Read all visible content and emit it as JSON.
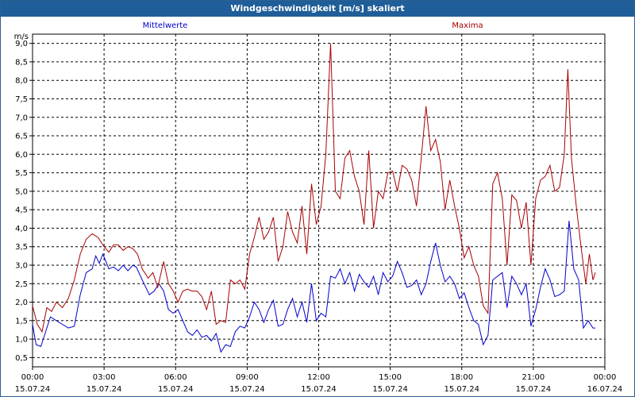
{
  "window": {
    "title": "Windgeschwindigkeit [m/s] skaliert"
  },
  "chart_data": {
    "type": "line",
    "title": "Windgeschwindigkeit [m/s] skaliert",
    "ylabel": "m/s",
    "ylim": [
      0.25,
      9.25
    ],
    "yticks": [
      "0,5",
      "1,0",
      "1,5",
      "2,0",
      "2,5",
      "3,0",
      "3,5",
      "4,0",
      "4,5",
      "5,0",
      "5,5",
      "6,0",
      "6,5",
      "7,0",
      "7,5",
      "8,0",
      "8,5",
      "9,0"
    ],
    "xlim_hours": [
      0,
      24
    ],
    "xticks": [
      {
        "h": 0,
        "time": "00:00",
        "date": "15.07.24"
      },
      {
        "h": 3,
        "time": "03:00",
        "date": "15.07.24"
      },
      {
        "h": 6,
        "time": "06:00",
        "date": "15.07.24"
      },
      {
        "h": 9,
        "time": "09:00",
        "date": "15.07.24"
      },
      {
        "h": 12,
        "time": "12:00",
        "date": "15.07.24"
      },
      {
        "h": 15,
        "time": "15:00",
        "date": "15.07.24"
      },
      {
        "h": 18,
        "time": "18:00",
        "date": "15.07.24"
      },
      {
        "h": 21,
        "time": "21:00",
        "date": "15.07.24"
      },
      {
        "h": 24,
        "time": "00:00",
        "date": "16.07.24"
      }
    ],
    "grid": true,
    "series": [
      {
        "name": "Mittelwerte",
        "color": "#0000cc",
        "points": [
          [
            0.0,
            1.4
          ],
          [
            0.15,
            0.85
          ],
          [
            0.35,
            0.8
          ],
          [
            0.6,
            1.3
          ],
          [
            0.75,
            1.6
          ],
          [
            1.0,
            1.5
          ],
          [
            1.25,
            1.4
          ],
          [
            1.5,
            1.3
          ],
          [
            1.75,
            1.35
          ],
          [
            2.0,
            2.2
          ],
          [
            2.25,
            2.8
          ],
          [
            2.5,
            2.9
          ],
          [
            2.65,
            3.25
          ],
          [
            2.8,
            3.05
          ],
          [
            2.95,
            3.3
          ],
          [
            3.2,
            2.9
          ],
          [
            3.4,
            2.95
          ],
          [
            3.6,
            2.85
          ],
          [
            3.8,
            3.0
          ],
          [
            4.0,
            2.85
          ],
          [
            4.2,
            3.0
          ],
          [
            4.35,
            2.95
          ],
          [
            4.6,
            2.6
          ],
          [
            4.9,
            2.2
          ],
          [
            5.1,
            2.3
          ],
          [
            5.3,
            2.5
          ],
          [
            5.5,
            2.3
          ],
          [
            5.7,
            1.8
          ],
          [
            5.9,
            1.7
          ],
          [
            6.1,
            1.8
          ],
          [
            6.3,
            1.5
          ],
          [
            6.5,
            1.2
          ],
          [
            6.7,
            1.1
          ],
          [
            6.9,
            1.25
          ],
          [
            7.1,
            1.05
          ],
          [
            7.3,
            1.1
          ],
          [
            7.5,
            0.95
          ],
          [
            7.7,
            1.15
          ],
          [
            7.9,
            0.65
          ],
          [
            8.1,
            0.85
          ],
          [
            8.3,
            0.8
          ],
          [
            8.5,
            1.2
          ],
          [
            8.7,
            1.35
          ],
          [
            8.9,
            1.3
          ],
          [
            9.1,
            1.6
          ],
          [
            9.3,
            2.0
          ],
          [
            9.5,
            1.8
          ],
          [
            9.7,
            1.45
          ],
          [
            9.9,
            1.8
          ],
          [
            10.1,
            2.05
          ],
          [
            10.3,
            1.35
          ],
          [
            10.5,
            1.4
          ],
          [
            10.7,
            1.8
          ],
          [
            10.9,
            2.1
          ],
          [
            11.1,
            1.6
          ],
          [
            11.3,
            2.0
          ],
          [
            11.5,
            1.45
          ],
          [
            11.7,
            2.5
          ],
          [
            11.9,
            1.5
          ],
          [
            12.1,
            1.7
          ],
          [
            12.3,
            1.6
          ],
          [
            12.5,
            2.7
          ],
          [
            12.7,
            2.65
          ],
          [
            12.9,
            2.9
          ],
          [
            13.1,
            2.5
          ],
          [
            13.3,
            2.8
          ],
          [
            13.5,
            2.3
          ],
          [
            13.7,
            2.75
          ],
          [
            13.9,
            2.55
          ],
          [
            14.1,
            2.4
          ],
          [
            14.3,
            2.7
          ],
          [
            14.5,
            2.2
          ],
          [
            14.7,
            2.8
          ],
          [
            14.9,
            2.55
          ],
          [
            15.1,
            2.7
          ],
          [
            15.3,
            3.1
          ],
          [
            15.5,
            2.8
          ],
          [
            15.7,
            2.4
          ],
          [
            15.9,
            2.45
          ],
          [
            16.1,
            2.6
          ],
          [
            16.3,
            2.2
          ],
          [
            16.5,
            2.5
          ],
          [
            16.7,
            3.1
          ],
          [
            16.9,
            3.6
          ],
          [
            17.1,
            3.0
          ],
          [
            17.3,
            2.55
          ],
          [
            17.5,
            2.7
          ],
          [
            17.7,
            2.5
          ],
          [
            17.9,
            2.1
          ],
          [
            18.1,
            2.25
          ],
          [
            18.3,
            1.85
          ],
          [
            18.5,
            1.5
          ],
          [
            18.7,
            1.4
          ],
          [
            18.9,
            0.85
          ],
          [
            19.1,
            1.1
          ],
          [
            19.3,
            2.6
          ],
          [
            19.5,
            2.7
          ],
          [
            19.7,
            2.8
          ],
          [
            19.9,
            1.85
          ],
          [
            20.1,
            2.7
          ],
          [
            20.3,
            2.5
          ],
          [
            20.5,
            2.2
          ],
          [
            20.7,
            2.5
          ],
          [
            20.9,
            1.35
          ],
          [
            21.1,
            1.8
          ],
          [
            21.3,
            2.4
          ],
          [
            21.5,
            2.9
          ],
          [
            21.7,
            2.6
          ],
          [
            21.9,
            2.15
          ],
          [
            22.1,
            2.2
          ],
          [
            22.3,
            2.3
          ],
          [
            22.5,
            4.2
          ],
          [
            22.7,
            2.9
          ],
          [
            22.9,
            2.6
          ],
          [
            23.1,
            1.3
          ],
          [
            23.3,
            1.5
          ],
          [
            23.5,
            1.3
          ],
          [
            23.6,
            1.3
          ]
        ]
      },
      {
        "name": "Maxima",
        "color": "#aa0000",
        "points": [
          [
            0.0,
            1.9
          ],
          [
            0.2,
            1.4
          ],
          [
            0.4,
            1.2
          ],
          [
            0.6,
            1.85
          ],
          [
            0.8,
            1.75
          ],
          [
            1.0,
            2.0
          ],
          [
            1.25,
            1.85
          ],
          [
            1.5,
            2.1
          ],
          [
            1.75,
            2.6
          ],
          [
            2.0,
            3.3
          ],
          [
            2.25,
            3.7
          ],
          [
            2.5,
            3.85
          ],
          [
            2.75,
            3.75
          ],
          [
            3.0,
            3.5
          ],
          [
            3.2,
            3.35
          ],
          [
            3.4,
            3.55
          ],
          [
            3.6,
            3.55
          ],
          [
            3.8,
            3.4
          ],
          [
            4.0,
            3.5
          ],
          [
            4.2,
            3.45
          ],
          [
            4.4,
            3.3
          ],
          [
            4.6,
            2.9
          ],
          [
            4.85,
            2.65
          ],
          [
            5.05,
            2.8
          ],
          [
            5.25,
            2.4
          ],
          [
            5.5,
            3.1
          ],
          [
            5.7,
            2.5
          ],
          [
            5.9,
            2.3
          ],
          [
            6.1,
            2.0
          ],
          [
            6.3,
            2.3
          ],
          [
            6.5,
            2.35
          ],
          [
            6.7,
            2.3
          ],
          [
            6.9,
            2.3
          ],
          [
            7.1,
            2.15
          ],
          [
            7.3,
            1.8
          ],
          [
            7.5,
            2.3
          ],
          [
            7.7,
            1.4
          ],
          [
            7.9,
            1.5
          ],
          [
            8.1,
            1.45
          ],
          [
            8.3,
            2.6
          ],
          [
            8.5,
            2.5
          ],
          [
            8.7,
            2.6
          ],
          [
            8.9,
            2.35
          ],
          [
            9.1,
            3.3
          ],
          [
            9.3,
            3.75
          ],
          [
            9.5,
            4.3
          ],
          [
            9.7,
            3.7
          ],
          [
            9.9,
            3.9
          ],
          [
            10.1,
            4.3
          ],
          [
            10.3,
            3.1
          ],
          [
            10.5,
            3.5
          ],
          [
            10.7,
            4.45
          ],
          [
            10.9,
            3.9
          ],
          [
            11.1,
            3.6
          ],
          [
            11.3,
            4.6
          ],
          [
            11.5,
            3.3
          ],
          [
            11.7,
            5.2
          ],
          [
            11.9,
            4.1
          ],
          [
            12.1,
            4.6
          ],
          [
            12.3,
            6.0
          ],
          [
            12.5,
            9.0
          ],
          [
            12.7,
            5.0
          ],
          [
            12.9,
            4.8
          ],
          [
            13.1,
            5.9
          ],
          [
            13.3,
            6.1
          ],
          [
            13.5,
            5.4
          ],
          [
            13.7,
            5.0
          ],
          [
            13.9,
            4.1
          ],
          [
            14.1,
            6.1
          ],
          [
            14.3,
            4.0
          ],
          [
            14.5,
            5.0
          ],
          [
            14.7,
            4.8
          ],
          [
            14.9,
            5.5
          ],
          [
            15.1,
            5.55
          ],
          [
            15.3,
            5.0
          ],
          [
            15.5,
            5.7
          ],
          [
            15.7,
            5.6
          ],
          [
            15.9,
            5.3
          ],
          [
            16.1,
            4.6
          ],
          [
            16.3,
            5.9
          ],
          [
            16.5,
            7.3
          ],
          [
            16.7,
            6.1
          ],
          [
            16.9,
            6.4
          ],
          [
            17.1,
            5.8
          ],
          [
            17.3,
            4.5
          ],
          [
            17.5,
            5.3
          ],
          [
            17.7,
            4.6
          ],
          [
            17.9,
            4.0
          ],
          [
            18.1,
            3.2
          ],
          [
            18.3,
            3.5
          ],
          [
            18.5,
            3.0
          ],
          [
            18.7,
            2.7
          ],
          [
            18.9,
            1.9
          ],
          [
            19.1,
            1.7
          ],
          [
            19.3,
            5.2
          ],
          [
            19.5,
            5.5
          ],
          [
            19.7,
            4.8
          ],
          [
            19.9,
            3.0
          ],
          [
            20.1,
            4.9
          ],
          [
            20.3,
            4.75
          ],
          [
            20.5,
            4.0
          ],
          [
            20.7,
            4.7
          ],
          [
            20.9,
            3.0
          ],
          [
            21.1,
            4.8
          ],
          [
            21.3,
            5.3
          ],
          [
            21.5,
            5.4
          ],
          [
            21.7,
            5.7
          ],
          [
            21.9,
            5.0
          ],
          [
            22.1,
            5.1
          ],
          [
            22.3,
            6.0
          ],
          [
            22.45,
            8.3
          ],
          [
            22.6,
            5.9
          ],
          [
            22.8,
            4.6
          ],
          [
            23.0,
            3.5
          ],
          [
            23.2,
            2.5
          ],
          [
            23.35,
            3.3
          ],
          [
            23.5,
            2.6
          ],
          [
            23.6,
            2.8
          ]
        ]
      }
    ]
  }
}
